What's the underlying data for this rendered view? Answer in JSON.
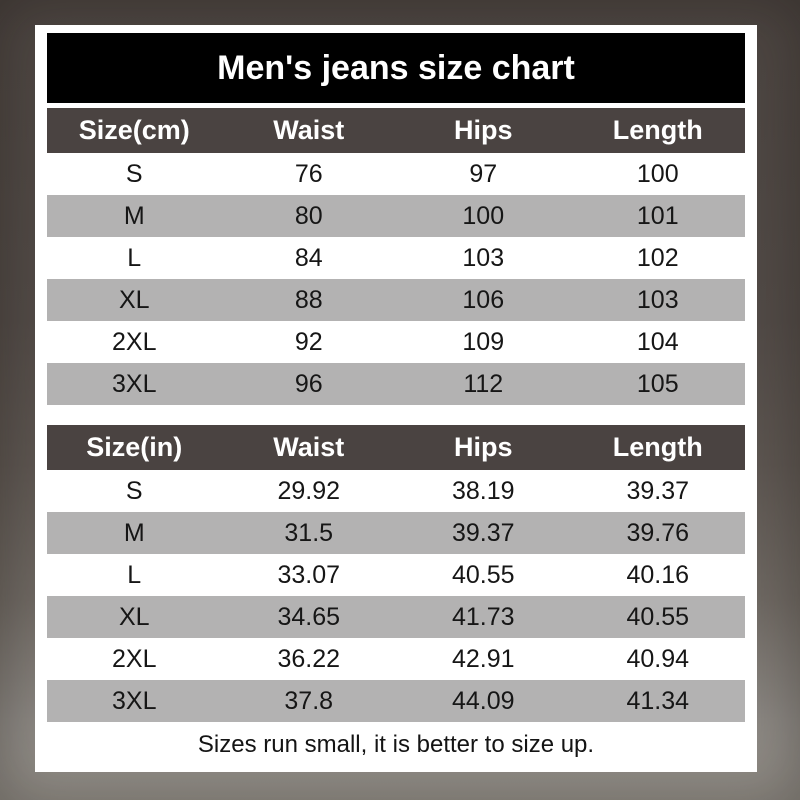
{
  "page": {
    "title": "Men's jeans size chart",
    "footnote": "Sizes run small, it is better to size up."
  },
  "colors": {
    "background_top": "#4c4541",
    "background_bottom": "#949089",
    "card": "#ffffff",
    "title_band": "#000000",
    "header_band": "#4a4341",
    "alt_row": "#b3b2b2",
    "row_text": "#161616",
    "header_text": "#ffffff"
  },
  "chart_data": [
    {
      "type": "table",
      "title": "Men's jeans size chart (cm)",
      "columns": [
        "Size(cm)",
        "Waist",
        "Hips",
        "Length"
      ],
      "rows": [
        [
          "S",
          "76",
          "97",
          "100"
        ],
        [
          "M",
          "80",
          "100",
          "101"
        ],
        [
          "L",
          "84",
          "103",
          "102"
        ],
        [
          "XL",
          "88",
          "106",
          "103"
        ],
        [
          "2XL",
          "92",
          "109",
          "104"
        ],
        [
          "3XL",
          "96",
          "112",
          "105"
        ]
      ]
    },
    {
      "type": "table",
      "title": "Men's jeans size chart (in)",
      "columns": [
        "Size(in)",
        "Waist",
        "Hips",
        "Length"
      ],
      "rows": [
        [
          "S",
          "29.92",
          "38.19",
          "39.37"
        ],
        [
          "M",
          "31.5",
          "39.37",
          "39.76"
        ],
        [
          "L",
          "33.07",
          "40.55",
          "40.16"
        ],
        [
          "XL",
          "34.65",
          "41.73",
          "40.55"
        ],
        [
          "2XL",
          "36.22",
          "42.91",
          "40.94"
        ],
        [
          "3XL",
          "37.8",
          "44.09",
          "41.34"
        ]
      ]
    }
  ]
}
